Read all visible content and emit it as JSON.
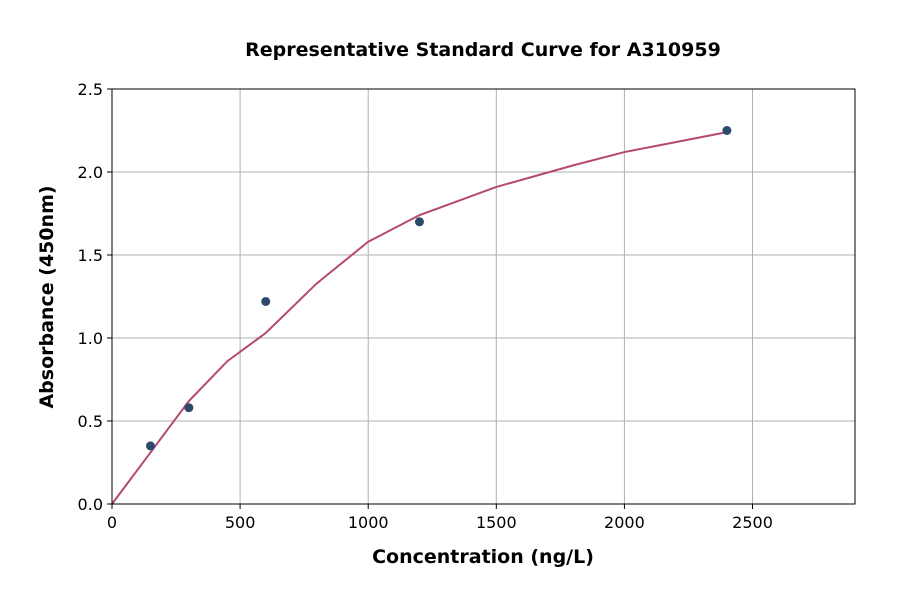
{
  "chart_data": {
    "type": "scatter",
    "title": "Representative Standard Curve for A310959",
    "xlabel": "Concentration (ng/L)",
    "ylabel": "Absorbance (450nm)",
    "xlim": [
      0,
      2900
    ],
    "ylim": [
      0,
      2.5
    ],
    "xticks": [
      0,
      500,
      1000,
      1500,
      2000,
      2500
    ],
    "yticks": [
      0.0,
      0.5,
      1.0,
      1.5,
      2.0,
      2.5
    ],
    "xtick_labels": [
      "0",
      "500",
      "1000",
      "1500",
      "2000",
      "2500"
    ],
    "ytick_labels": [
      "0.0",
      "0.5",
      "1.0",
      "1.5",
      "2.0",
      "2.5"
    ],
    "grid": true,
    "points": {
      "x": [
        150,
        300,
        600,
        1200,
        2400
      ],
      "y": [
        0.35,
        0.58,
        1.22,
        1.7,
        2.25
      ],
      "color": "#2e4a6b"
    },
    "curve": {
      "x": [
        0,
        150,
        300,
        450,
        600,
        800,
        1000,
        1200,
        1500,
        1800,
        2000,
        2200,
        2400
      ],
      "y": [
        0,
        0.31,
        0.62,
        0.86,
        1.03,
        1.33,
        1.58,
        1.74,
        1.91,
        2.04,
        2.12,
        2.18,
        2.24
      ],
      "color": "#b5496e"
    }
  }
}
